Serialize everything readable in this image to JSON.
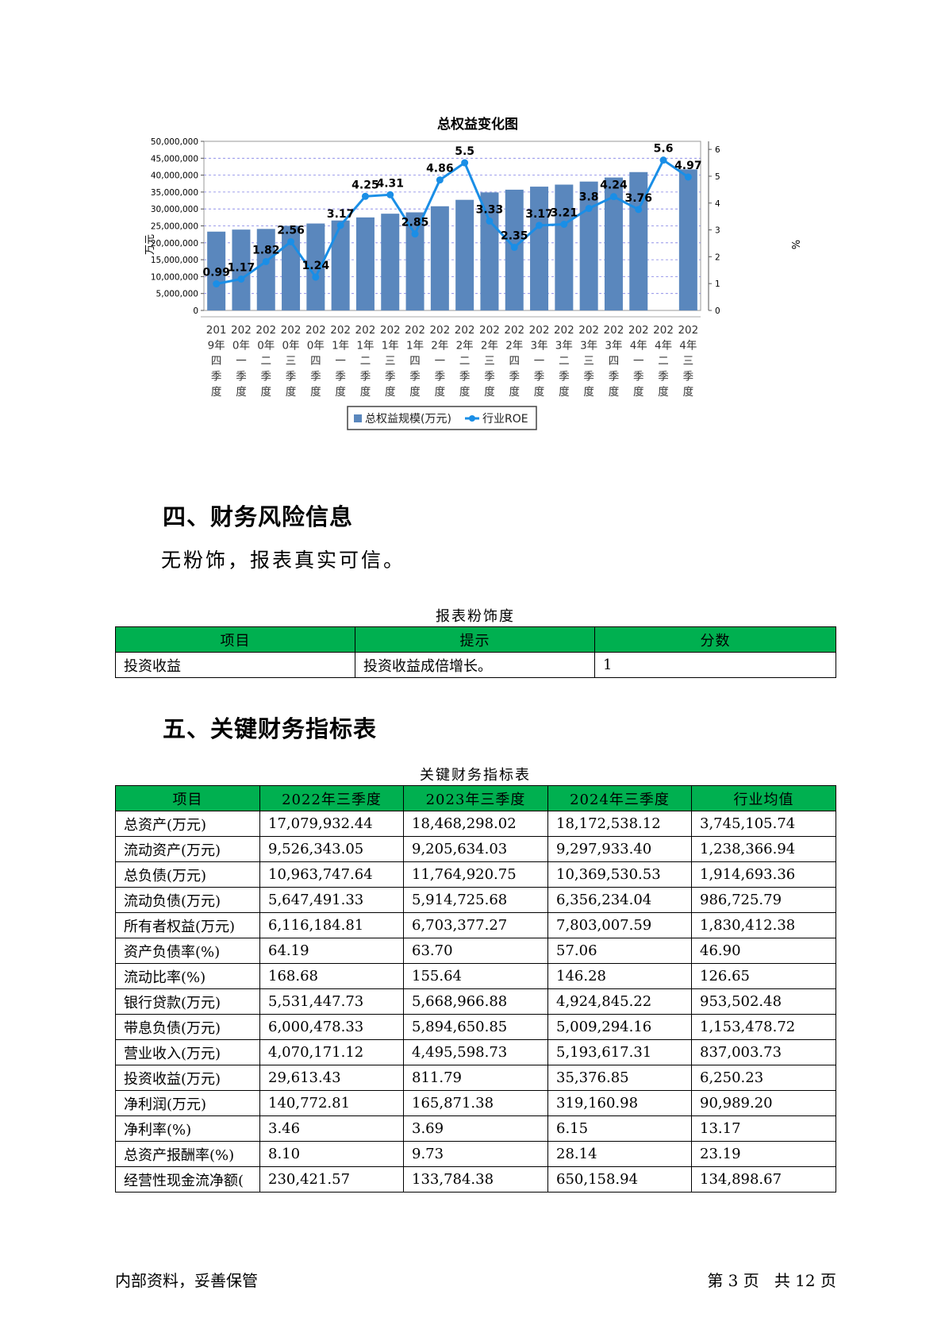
{
  "chart_data": {
    "type": "bar+line",
    "title": "总权益变化图",
    "ylabel": "万元",
    "y2label": "%",
    "ylim": [
      0,
      50000000
    ],
    "y2lim": [
      0,
      6.3
    ],
    "y_ticks": [
      "50,000,000",
      "45,000,000",
      "40,000,000",
      "35,000,000",
      "30,000,000",
      "25,000,000",
      "20,000,000",
      "15,000,000",
      "10,000,000",
      "5,000,000",
      "0"
    ],
    "y2_ticks": [
      "6",
      "5",
      "4",
      "3",
      "2",
      "1",
      "0"
    ],
    "categories": [
      [
        "201",
        "9年",
        "四",
        "季",
        "度"
      ],
      [
        "202",
        "0年",
        "一",
        "季",
        "度"
      ],
      [
        "202",
        "0年",
        "二",
        "季",
        "度"
      ],
      [
        "202",
        "0年",
        "三",
        "季",
        "度"
      ],
      [
        "202",
        "0年",
        "四",
        "季",
        "度"
      ],
      [
        "202",
        "1年",
        "一",
        "季",
        "度"
      ],
      [
        "202",
        "1年",
        "二",
        "季",
        "度"
      ],
      [
        "202",
        "1年",
        "三",
        "季",
        "度"
      ],
      [
        "202",
        "1年",
        "四",
        "季",
        "度"
      ],
      [
        "202",
        "2年",
        "一",
        "季",
        "度"
      ],
      [
        "202",
        "2年",
        "二",
        "季",
        "度"
      ],
      [
        "202",
        "2年",
        "三",
        "季",
        "度"
      ],
      [
        "202",
        "2年",
        "四",
        "季",
        "度"
      ],
      [
        "202",
        "3年",
        "一",
        "季",
        "度"
      ],
      [
        "202",
        "3年",
        "二",
        "季",
        "度"
      ],
      [
        "202",
        "3年",
        "三",
        "季",
        "度"
      ],
      [
        "202",
        "3年",
        "四",
        "季",
        "度"
      ],
      [
        "202",
        "4年",
        "一",
        "季",
        "度"
      ],
      [
        "202",
        "4年",
        "二",
        "季",
        "度"
      ],
      [
        "202",
        "4年",
        "三",
        "季",
        "度"
      ]
    ],
    "series": [
      {
        "name": "总权益规模(万元)",
        "type": "bar",
        "color": "#5a87bd",
        "values": [
          23300000,
          23900000,
          24100000,
          25000000,
          25700000,
          26600000,
          27500000,
          28600000,
          29000000,
          30800000,
          32700000,
          34900000,
          35700000,
          36600000,
          37200000,
          38100000,
          39300000,
          40900000,
          null,
          41700000
        ]
      },
      {
        "name": "行业ROE",
        "type": "line",
        "color": "#1a8ee6",
        "values": [
          0.99,
          1.17,
          1.82,
          2.56,
          1.24,
          3.17,
          4.25,
          4.31,
          2.85,
          4.86,
          5.5,
          3.33,
          2.35,
          3.17,
          3.21,
          3.8,
          4.24,
          3.76,
          5.6,
          4.97
        ],
        "labels": [
          "0.99",
          "1.17",
          "1.82",
          "2.56",
          "1.24",
          "3.17",
          "4.25",
          "4.31",
          "2.85",
          "4.86",
          "5.5",
          "3.33",
          "2.35",
          "3.17",
          "3.21",
          "3.8",
          "4.24",
          "3.76",
          "5.6",
          "4.97"
        ]
      }
    ],
    "grid": true,
    "legend": "bottom"
  },
  "section4": {
    "heading": "四、财务风险信息",
    "text": "无粉饰，报表真实可信。",
    "table_caption": "报表粉饰度",
    "headers": [
      "项目",
      "提示",
      "分数"
    ],
    "rows": [
      [
        "投资收益",
        "投资收益成倍增长。",
        "1"
      ]
    ]
  },
  "section5": {
    "heading": "五、关键财务指标表",
    "table_caption": "关键财务指标表",
    "headers": [
      "项目",
      "2022年三季度",
      "2023年三季度",
      "2024年三季度",
      "行业均值"
    ],
    "rows": [
      [
        "总资产(万元)",
        "17,079,932.44",
        "18,468,298.02",
        "18,172,538.12",
        "3,745,105.74"
      ],
      [
        "流动资产(万元)",
        "9,526,343.05",
        "9,205,634.03",
        "9,297,933.40",
        "1,238,366.94"
      ],
      [
        "总负债(万元)",
        "10,963,747.64",
        "11,764,920.75",
        "10,369,530.53",
        "1,914,693.36"
      ],
      [
        "流动负债(万元)",
        "5,647,491.33",
        "5,914,725.68",
        "6,356,234.04",
        "986,725.79"
      ],
      [
        "所有者权益(万元)",
        "6,116,184.81",
        "6,703,377.27",
        "7,803,007.59",
        "1,830,412.38"
      ],
      [
        "资产负债率(%)",
        "64.19",
        "63.70",
        "57.06",
        "46.90"
      ],
      [
        "流动比率(%)",
        "168.68",
        "155.64",
        "146.28",
        "126.65"
      ],
      [
        "银行贷款(万元)",
        "5,531,447.73",
        "5,668,966.88",
        "4,924,845.22",
        "953,502.48"
      ],
      [
        "带息负债(万元)",
        "6,000,478.33",
        "5,894,650.85",
        "5,009,294.16",
        "1,153,478.72"
      ],
      [
        "营业收入(万元)",
        "4,070,171.12",
        "4,495,598.73",
        "5,193,617.31",
        "837,003.73"
      ],
      [
        "投资收益(万元)",
        "29,613.43",
        "811.79",
        "35,376.85",
        "6,250.23"
      ],
      [
        "净利润(万元)",
        "140,772.81",
        "165,871.38",
        "319,160.98",
        "90,989.20"
      ],
      [
        "净利率(%)",
        "3.46",
        "3.69",
        "6.15",
        "13.17"
      ],
      [
        "总资产报酬率(%)",
        "8.10",
        "9.73",
        "28.14",
        "23.19"
      ],
      [
        "经营性现金流净额(",
        "230,421.57",
        "133,784.38",
        "650,158.94",
        "134,898.67"
      ]
    ]
  },
  "footer": {
    "left": "内部资料，妥善保管",
    "right": "第 3 页   共 12 页"
  }
}
